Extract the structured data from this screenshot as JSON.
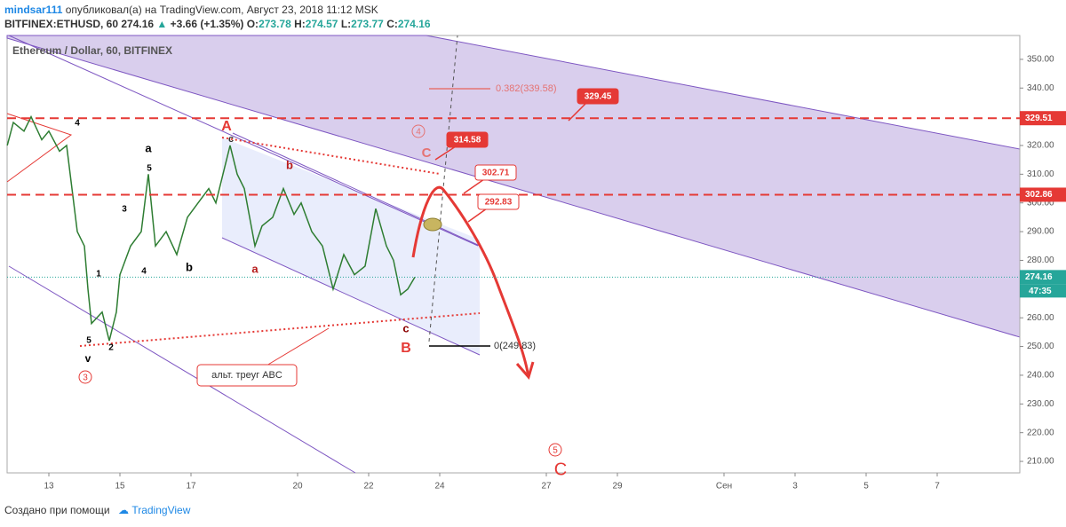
{
  "header": {
    "author": "mindsar111",
    "published": "опубликовал(а) на TradingView.com, Август 23, 2018 11:12 MSK",
    "symbol": "BITFINEX:ETHUSD, 60",
    "last": "274.16",
    "change": "+3.66 (+1.35%)",
    "o_label": "O:",
    "o": "273.78",
    "h_label": "H:",
    "h": "274.57",
    "l_label": "L:",
    "l": "273.77",
    "c_label": "C:",
    "c": "274.16"
  },
  "chart_data": {
    "type": "line",
    "title": "Ethereum / Dollar, 60, BITFINEX",
    "color": "#2e7d32",
    "x": [
      11.83,
      12.0,
      12.3,
      12.5,
      12.8,
      13.0,
      13.3,
      13.5,
      13.6,
      13.8,
      14.0,
      14.1,
      14.2,
      14.5,
      14.7,
      14.9,
      15.0,
      15.3,
      15.6,
      15.8,
      16.0,
      16.3,
      16.6,
      16.9,
      17.2,
      17.5,
      17.7,
      17.9,
      18.1,
      18.3,
      18.5,
      18.8,
      19.0,
      19.3,
      19.6,
      19.9,
      20.1,
      20.4,
      20.7,
      21.0,
      21.3,
      21.6,
      21.9,
      22.2,
      22.5,
      22.7,
      22.9,
      23.1,
      23.3
    ],
    "values": [
      320,
      328,
      325,
      330,
      322,
      325,
      318,
      320,
      310,
      290,
      285,
      270,
      258,
      262,
      252,
      262,
      275,
      285,
      290,
      310,
      285,
      290,
      282,
      295,
      300,
      305,
      300,
      310,
      320,
      310,
      305,
      285,
      292,
      295,
      305,
      296,
      300,
      290,
      285,
      270,
      282,
      275,
      278,
      298,
      285,
      280,
      268,
      270,
      274.16
    ],
    "xlim": [
      11.825,
      40.325
    ],
    "xticks": [
      13,
      15,
      17,
      20,
      22,
      24,
      27,
      29,
      {
        "value": 32,
        "label": "Сен"
      },
      {
        "value": 34,
        "label": "3"
      },
      {
        "value": 36,
        "label": "5"
      },
      {
        "value": 38,
        "label": "7"
      }
    ],
    "ylim": [
      206,
      358.3
    ],
    "yticks": [
      {
        "value": 210,
        "label": "210.00"
      },
      {
        "value": 220,
        "label": "220.00"
      },
      {
        "value": 230,
        "label": "230.00"
      },
      {
        "value": 240,
        "label": "240.00"
      },
      {
        "value": 250,
        "label": "250.00"
      },
      {
        "value": 260,
        "label": "260.00"
      },
      {
        "value": 270,
        "label": "270.00"
      },
      {
        "value": 280,
        "label": "280.00"
      },
      {
        "value": 290,
        "label": "290.00"
      },
      {
        "value": 300,
        "label": "300.00"
      },
      {
        "value": 310,
        "label": "310.00"
      },
      {
        "value": 320,
        "label": "320.00"
      },
      {
        "value": 330,
        "label": "330.00"
      },
      {
        "value": 340,
        "label": "340.00"
      },
      {
        "value": 350,
        "label": "350.00"
      }
    ],
    "last_price": 274.16,
    "countdown": "47:35",
    "levels": [
      {
        "value": 329.51,
        "color": "#e53935"
      },
      {
        "value": 302.86,
        "color": "#e53935"
      }
    ],
    "callouts": [
      {
        "value": 329.45
      },
      {
        "value": 314.58
      },
      {
        "value": 302.71
      },
      {
        "value": 292.83
      }
    ],
    "fib_labels": [
      "0.382(339.58)",
      "0(249.83)"
    ],
    "note": "альт. треуг ABC",
    "wave_labels": [
      "A",
      "c",
      "a",
      "5",
      "3",
      "b",
      "4",
      "1",
      "5",
      "v",
      "2",
      "4",
      "b",
      "a",
      "c",
      "B",
      "C"
    ],
    "circled_labels": [
      "3",
      "4",
      "5"
    ],
    "big_label": "C"
  },
  "footer": {
    "text": "Создано при помощи",
    "brand": "TradingView"
  }
}
